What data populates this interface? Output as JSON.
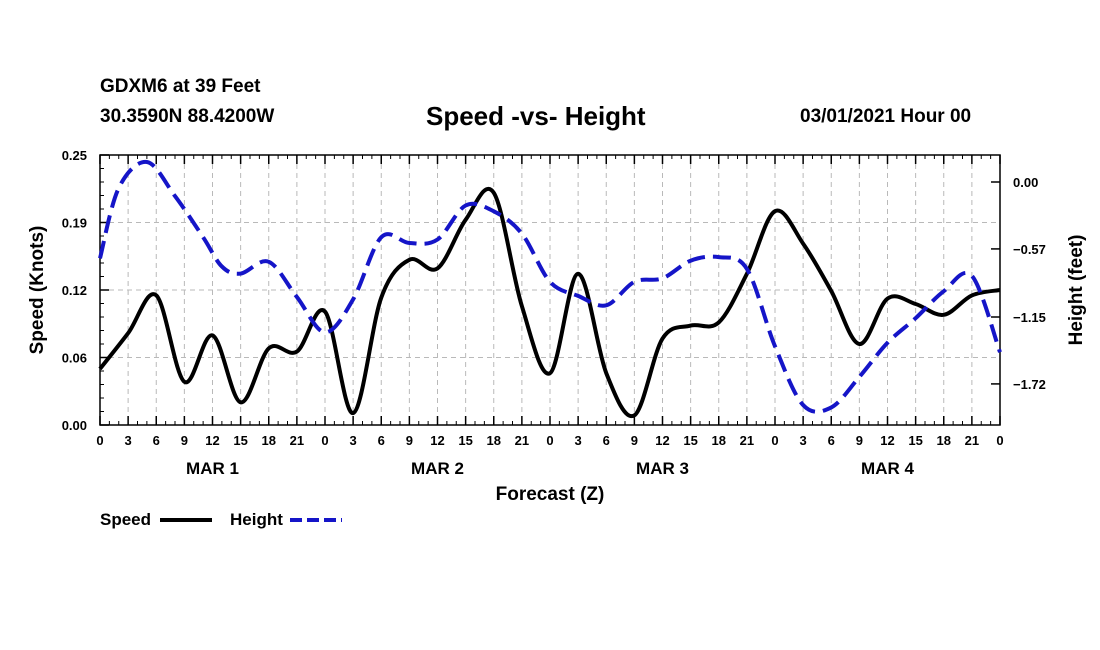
{
  "header": {
    "station": "GDXM6 at 39 Feet",
    "coords": "30.3590N 88.4200W",
    "title": "Speed -vs- Height",
    "datetime": "03/01/2021 Hour 00"
  },
  "chart_data": {
    "type": "line",
    "title": "Speed -vs- Height",
    "xlabel": "Forecast (Z)",
    "ylabel_left": "Speed (Knots)",
    "ylabel_right": "Height (feet)",
    "x_unit": "forecast hours from 03/01/2021 00Z",
    "x_range": [
      0,
      96
    ],
    "x_tick_labels": [
      "0",
      "3",
      "6",
      "9",
      "12",
      "15",
      "18",
      "21",
      "0",
      "3",
      "6",
      "9",
      "12",
      "15",
      "18",
      "21",
      "0",
      "3",
      "6",
      "9",
      "12",
      "15",
      "18",
      "21",
      "0",
      "3",
      "6",
      "9",
      "12",
      "15",
      "18",
      "21",
      "0"
    ],
    "day_labels": [
      {
        "label": "MAR 1",
        "hour": 12
      },
      {
        "label": "MAR 2",
        "hour": 36
      },
      {
        "label": "MAR 3",
        "hour": 60
      },
      {
        "label": "MAR 4",
        "hour": 84
      }
    ],
    "y_left": {
      "range": [
        0,
        0.25
      ],
      "ticks": [
        "0.00",
        "0.06",
        "0.12",
        "0.19",
        "0.25"
      ]
    },
    "y_right": {
      "range": [
        -2.07,
        0.23
      ],
      "ticks": [
        {
          "value": 0.0,
          "label": "0.00"
        },
        {
          "value": -0.57,
          "label": "−0.57"
        },
        {
          "value": -1.15,
          "label": "−1.15"
        },
        {
          "value": -1.72,
          "label": "−1.72"
        }
      ]
    },
    "grid": true,
    "series": [
      {
        "name": "Speed",
        "axis": "left",
        "color": "#000000",
        "style": "solid",
        "x": [
          0,
          3,
          6,
          9,
          12,
          15,
          18,
          21,
          24,
          27,
          30,
          33,
          36,
          39,
          42,
          45,
          48,
          51,
          54,
          57,
          60,
          63,
          66,
          69,
          72,
          75,
          78,
          81,
          84,
          87,
          90,
          93,
          96
        ],
        "y": [
          0.052,
          0.085,
          0.12,
          0.04,
          0.083,
          0.021,
          0.071,
          0.068,
          0.105,
          0.011,
          0.118,
          0.153,
          0.145,
          0.19,
          0.215,
          0.11,
          0.048,
          0.14,
          0.048,
          0.009,
          0.08,
          0.092,
          0.095,
          0.14,
          0.198,
          0.168,
          0.124,
          0.075,
          0.117,
          0.112,
          0.102,
          0.12,
          0.125
        ]
      },
      {
        "name": "Height",
        "axis": "right",
        "color": "#1515c8",
        "style": "dashed",
        "x": [
          0,
          2,
          5,
          8,
          11,
          13,
          15,
          18,
          21,
          24,
          27,
          30,
          33,
          36,
          39,
          42,
          45,
          48,
          51,
          54,
          57,
          60,
          63,
          66,
          69,
          72,
          75,
          78,
          81,
          84,
          87,
          90,
          93,
          96
        ],
        "y": [
          -0.65,
          -0.05,
          0.17,
          -0.12,
          -0.47,
          -0.72,
          -0.78,
          -0.68,
          -0.98,
          -1.28,
          -1.0,
          -0.47,
          -0.52,
          -0.49,
          -0.2,
          -0.25,
          -0.44,
          -0.85,
          -0.97,
          -1.05,
          -0.85,
          -0.82,
          -0.67,
          -0.64,
          -0.74,
          -1.4,
          -1.9,
          -1.92,
          -1.66,
          -1.37,
          -1.16,
          -0.93,
          -0.8,
          -1.45
        ]
      }
    ],
    "legend": {
      "position": "bottom-left",
      "entries": [
        "Speed",
        "Height"
      ]
    }
  }
}
